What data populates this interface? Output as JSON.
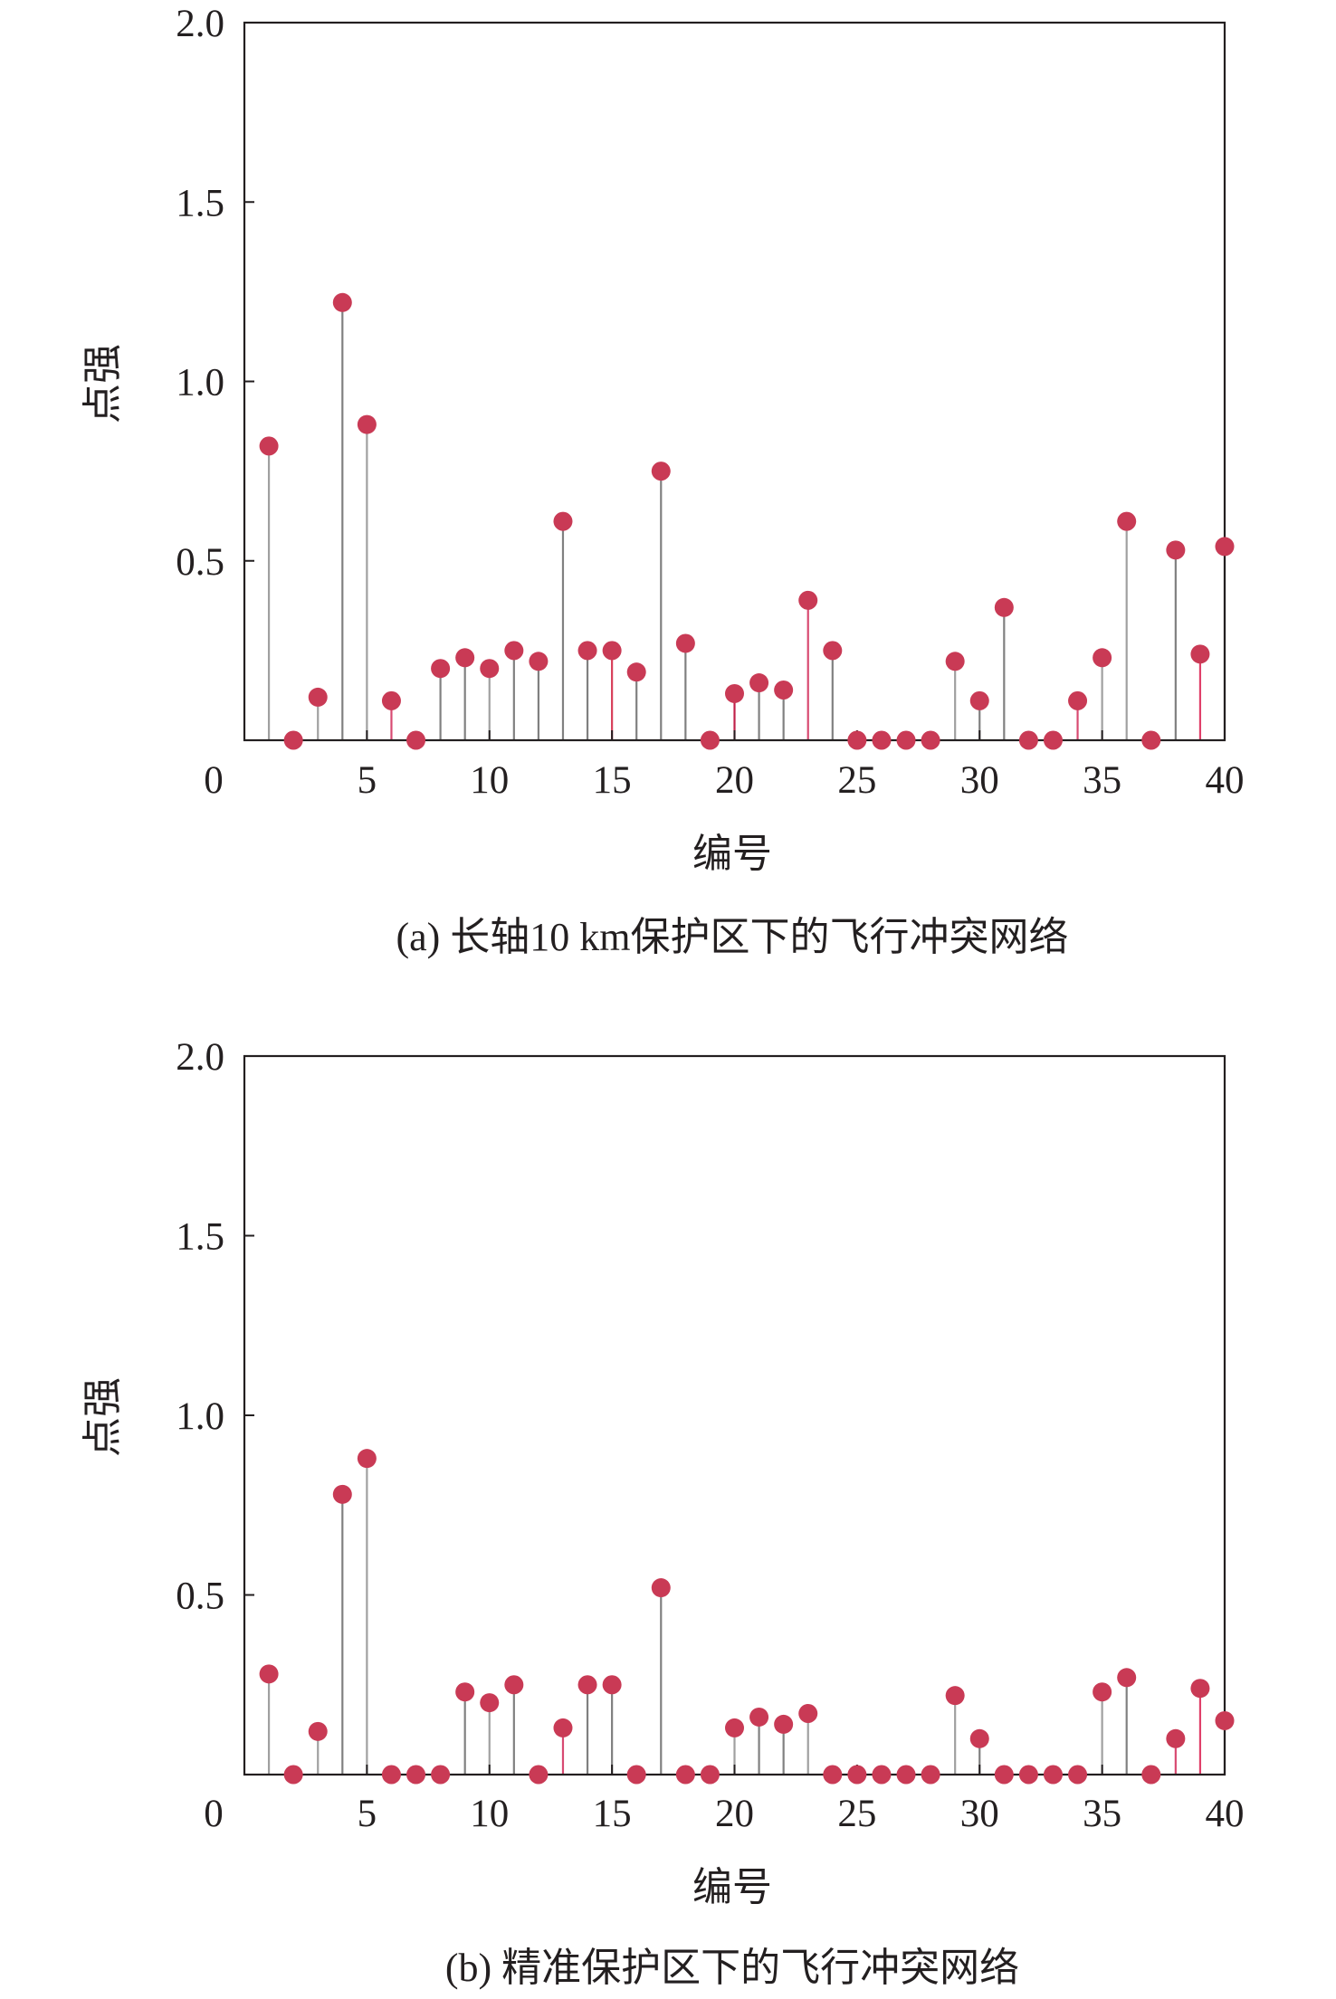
{
  "chart_data": [
    {
      "type": "stem",
      "caption": "(a) 长轴10 km保护区下的飞行冲突网络",
      "xlabel": "编号",
      "ylabel": "点强",
      "xlim": [
        0,
        40
      ],
      "ylim": [
        0,
        2.0
      ],
      "xticks": [
        "0",
        "5",
        "10",
        "15",
        "20",
        "25",
        "30",
        "35",
        "40"
      ],
      "yticks": [
        "0.5",
        "1.0",
        "1.5",
        "2.0"
      ],
      "x": [
        1,
        2,
        3,
        4,
        5,
        6,
        7,
        8,
        9,
        10,
        11,
        12,
        13,
        14,
        15,
        16,
        17,
        18,
        19,
        20,
        21,
        22,
        23,
        24,
        25,
        26,
        27,
        28,
        29,
        30,
        31,
        32,
        33,
        34,
        35,
        36,
        37,
        38,
        39,
        40
      ],
      "values": [
        0.82,
        0,
        0.12,
        1.22,
        0.88,
        0.11,
        0,
        0.2,
        0.23,
        0.2,
        0.25,
        0.22,
        0.61,
        0.25,
        0.25,
        0.19,
        0.75,
        0.27,
        0,
        0.13,
        0.16,
        0.14,
        0.39,
        0.25,
        0,
        0,
        0,
        0,
        0.22,
        0.11,
        0.37,
        0,
        0,
        0.11,
        0.23,
        0.61,
        0,
        0.53,
        0.24,
        0.54
      ],
      "stem_colors": [
        "#a0a0a0",
        "#a0a0a0",
        "#a0a0a0",
        "#808080",
        "#a0a0a0",
        "#d84a72",
        "#a0a0a0",
        "#808080",
        "#808080",
        "#a0a0a0",
        "#808080",
        "#808080",
        "#808080",
        "#808080",
        "#d8405a",
        "#808080",
        "#808080",
        "#808080",
        "#a0a0a0",
        "#c0204a",
        "#808080",
        "#808080",
        "#d84a72",
        "#808080",
        "#a0a0a0",
        "#a0a0a0",
        "#a0a0a0",
        "#a0a0a0",
        "#a0a0a0",
        "#808080",
        "#808080",
        "#a0a0a0",
        "#a0a0a0",
        "#d84a72",
        "#a0a0a0",
        "#a0a0a0",
        "#a0a0a0",
        "#808080",
        "#e0406a",
        "#a0a0a0"
      ],
      "marker_color": "#c93a55"
    },
    {
      "type": "stem",
      "caption": "(b) 精准保护区下的飞行冲突网络",
      "xlabel": "编号",
      "ylabel": "点强",
      "xlim": [
        0,
        40
      ],
      "ylim": [
        0,
        2.0
      ],
      "xticks": [
        "0",
        "5",
        "10",
        "15",
        "20",
        "25",
        "30",
        "35",
        "40"
      ],
      "yticks": [
        "0.5",
        "1.0",
        "1.5",
        "2.0"
      ],
      "x": [
        1,
        2,
        3,
        4,
        5,
        6,
        7,
        8,
        9,
        10,
        11,
        12,
        13,
        14,
        15,
        16,
        17,
        18,
        19,
        20,
        21,
        22,
        23,
        24,
        25,
        26,
        27,
        28,
        29,
        30,
        31,
        32,
        33,
        34,
        35,
        36,
        37,
        38,
        39,
        40
      ],
      "values": [
        0.28,
        0,
        0.12,
        0.78,
        0.88,
        0,
        0,
        0,
        0.23,
        0.2,
        0.25,
        0,
        0.13,
        0.25,
        0.25,
        0,
        0.52,
        0,
        0,
        0.13,
        0.16,
        0.14,
        0.17,
        0,
        0,
        0,
        0,
        0,
        0.22,
        0.1,
        0,
        0,
        0,
        0,
        0.23,
        0.27,
        0,
        0.1,
        0.24,
        0.15
      ],
      "stem_colors": [
        "#a0a0a0",
        "#a0a0a0",
        "#a0a0a0",
        "#808080",
        "#a0a0a0",
        "#a0a0a0",
        "#a0a0a0",
        "#a0a0a0",
        "#808080",
        "#a0a0a0",
        "#808080",
        "#a0a0a0",
        "#d84a72",
        "#808080",
        "#808080",
        "#a0a0a0",
        "#808080",
        "#a0a0a0",
        "#a0a0a0",
        "#a0a0a0",
        "#808080",
        "#808080",
        "#a0a0a0",
        "#a0a0a0",
        "#a0a0a0",
        "#a0a0a0",
        "#a0a0a0",
        "#a0a0a0",
        "#a0a0a0",
        "#808080",
        "#a0a0a0",
        "#a0a0a0",
        "#a0a0a0",
        "#a0a0a0",
        "#a0a0a0",
        "#808080",
        "#a0a0a0",
        "#d84a72",
        "#e0406a",
        "#a0a0a0"
      ],
      "marker_color": "#c93a55"
    }
  ]
}
